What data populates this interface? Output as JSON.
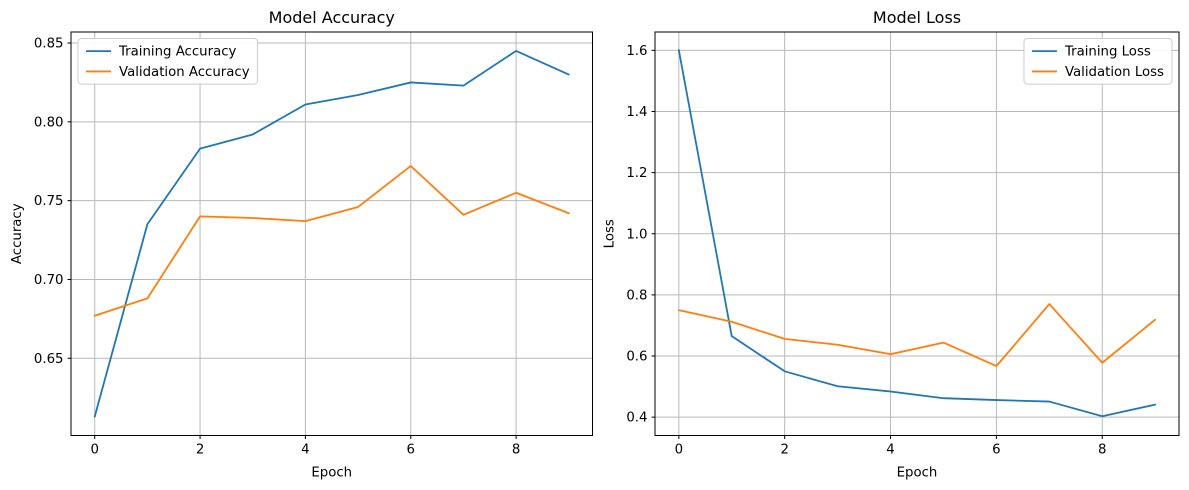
{
  "colors": {
    "background": "#ffffff",
    "grid": "#b9b9b9",
    "spine": "#000000",
    "text": "#000000",
    "legend_border": "#cccccc",
    "series_blue": "#1f77b4",
    "series_orange": "#ff7f0e"
  },
  "chart_data": [
    {
      "id": "accuracy",
      "type": "line",
      "title": "Model Accuracy",
      "xlabel": "Epoch",
      "ylabel": "Accuracy",
      "x": [
        0,
        1,
        2,
        3,
        4,
        5,
        6,
        7,
        8,
        9
      ],
      "xlim": [
        -0.45,
        9.45
      ],
      "ylim": [
        0.601,
        0.857
      ],
      "xticks": [
        0,
        2,
        4,
        6,
        8
      ],
      "xtick_labels": [
        "0",
        "2",
        "4",
        "6",
        "8"
      ],
      "yticks": [
        0.65,
        0.7,
        0.75,
        0.8,
        0.85
      ],
      "ytick_labels": [
        "0.65",
        "0.70",
        "0.75",
        "0.80",
        "0.85"
      ],
      "grid": true,
      "legend": {
        "position": "upper-left"
      },
      "series": [
        {
          "name": "Training Accuracy",
          "color": "#1f77b4",
          "values": [
            0.613,
            0.735,
            0.783,
            0.792,
            0.811,
            0.817,
            0.825,
            0.823,
            0.845,
            0.83
          ]
        },
        {
          "name": "Validation Accuracy",
          "color": "#ff7f0e",
          "values": [
            0.677,
            0.688,
            0.74,
            0.739,
            0.737,
            0.746,
            0.772,
            0.741,
            0.755,
            0.742
          ]
        }
      ]
    },
    {
      "id": "loss",
      "type": "line",
      "title": "Model Loss",
      "xlabel": "Epoch",
      "ylabel": "Loss",
      "x": [
        0,
        1,
        2,
        3,
        4,
        5,
        6,
        7,
        8,
        9
      ],
      "xlim": [
        -0.45,
        9.45
      ],
      "ylim": [
        0.34,
        1.66
      ],
      "xticks": [
        0,
        2,
        4,
        6,
        8
      ],
      "xtick_labels": [
        "0",
        "2",
        "4",
        "6",
        "8"
      ],
      "yticks": [
        0.4,
        0.6,
        0.8,
        1.0,
        1.2,
        1.4,
        1.6
      ],
      "ytick_labels": [
        "0.4",
        "0.6",
        "0.8",
        "1.0",
        "1.2",
        "1.4",
        "1.6"
      ],
      "grid": true,
      "legend": {
        "position": "upper-right"
      },
      "series": [
        {
          "name": "Training Loss",
          "color": "#1f77b4",
          "values": [
            1.601,
            0.665,
            0.55,
            0.501,
            0.484,
            0.462,
            0.456,
            0.451,
            0.403,
            0.441
          ]
        },
        {
          "name": "Validation Loss",
          "color": "#ff7f0e",
          "values": [
            0.75,
            0.712,
            0.656,
            0.637,
            0.606,
            0.644,
            0.567,
            0.77,
            0.578,
            0.719
          ]
        }
      ]
    }
  ]
}
